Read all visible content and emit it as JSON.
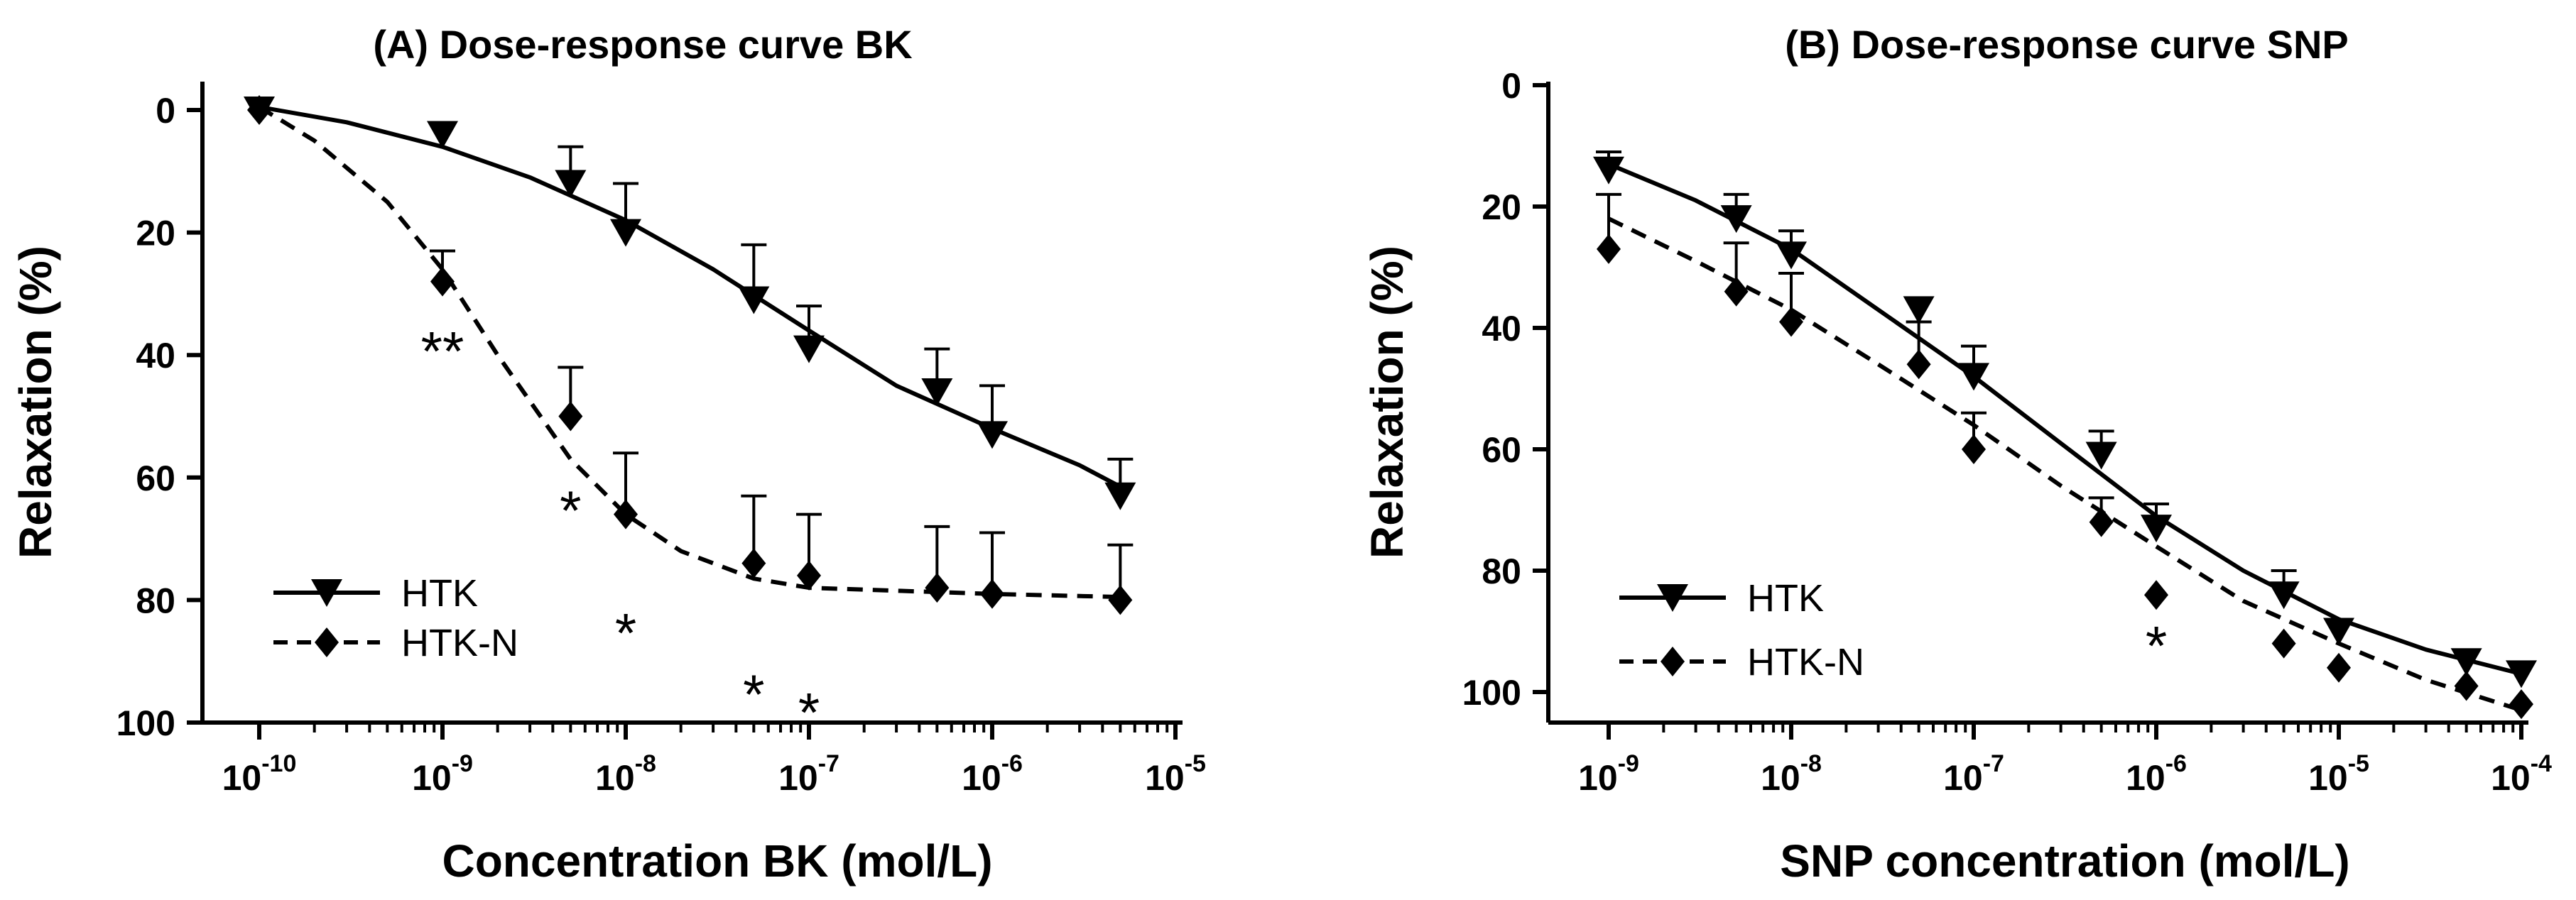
{
  "chart_data": [
    {
      "type": "line",
      "title": "(A) Dose-response curve BK",
      "xlabel": "Concentration BK (mol/L)",
      "ylabel": "Relaxation (%)",
      "x_scale": "log",
      "x_ticks": [
        {
          "value": 1e-10,
          "base": "10",
          "exp": "-10"
        },
        {
          "value": 1e-09,
          "base": "10",
          "exp": "-9"
        },
        {
          "value": 1e-08,
          "base": "10",
          "exp": "-8"
        },
        {
          "value": 1e-07,
          "base": "10",
          "exp": "-7"
        },
        {
          "value": 1e-06,
          "base": "10",
          "exp": "-6"
        },
        {
          "value": 1e-05,
          "base": "10",
          "exp": "-5"
        }
      ],
      "y_ticks": [
        "0",
        "20",
        "40",
        "60",
        "80",
        "100"
      ],
      "y_inverted": true,
      "ylim": [
        0,
        100
      ],
      "legend_position": "bottom-left",
      "series": [
        {
          "name": "HTK",
          "marker": "triangle-down",
          "line_style": "solid",
          "x": [
            1e-10,
            1e-09,
            5e-09,
            1e-08,
            5e-08,
            1e-07,
            5e-07,
            1e-06,
            5e-06
          ],
          "y": [
            0,
            4,
            12,
            20,
            31,
            39,
            46,
            53,
            63
          ],
          "error": [
            0,
            0,
            6,
            8,
            9,
            7,
            7,
            8,
            6
          ],
          "fit": [
            [
              1e-10,
              -0.5
            ],
            [
              3e-10,
              2
            ],
            [
              1e-09,
              6
            ],
            [
              3e-09,
              11
            ],
            [
              1e-08,
              18
            ],
            [
              3e-08,
              26
            ],
            [
              1e-07,
              36
            ],
            [
              3e-07,
              45
            ],
            [
              1e-06,
              52
            ],
            [
              3e-06,
              58
            ],
            [
              5e-06,
              61.5
            ]
          ]
        },
        {
          "name": "HTK-N",
          "marker": "diamond",
          "line_style": "dashed",
          "x": [
            1e-10,
            1e-09,
            5e-09,
            1e-08,
            5e-08,
            1e-07,
            5e-07,
            1e-06,
            5e-06
          ],
          "y": [
            0,
            28,
            50,
            66,
            74,
            76,
            78,
            79,
            80
          ],
          "error": [
            0,
            5,
            8,
            10,
            11,
            10,
            10,
            10,
            9
          ],
          "fit": [
            [
              1e-10,
              -0.5
            ],
            [
              2e-10,
              5
            ],
            [
              5e-10,
              15
            ],
            [
              1e-09,
              26
            ],
            [
              2e-09,
              40
            ],
            [
              5e-09,
              57
            ],
            [
              1e-08,
              66
            ],
            [
              2e-08,
              72
            ],
            [
              5e-08,
              76.5
            ],
            [
              1e-07,
              78
            ],
            [
              1e-06,
              79
            ],
            [
              5e-06,
              79.5
            ]
          ]
        }
      ],
      "annotations": [
        {
          "text": "**",
          "x": 1e-09,
          "y": 39
        },
        {
          "text": "*",
          "x": 5e-09,
          "y": 65
        },
        {
          "text": "*",
          "x": 1e-08,
          "y": 85
        },
        {
          "text": "*",
          "x": 5e-08,
          "y": 95
        },
        {
          "text": "*",
          "x": 1e-07,
          "y": 98
        }
      ]
    },
    {
      "type": "line",
      "title": "(B) Dose-response curve SNP",
      "xlabel": "SNP concentration (mol/L)",
      "ylabel": "Relaxation (%)",
      "x_scale": "log",
      "x_ticks": [
        {
          "value": 1e-09,
          "base": "10",
          "exp": "-9"
        },
        {
          "value": 1e-08,
          "base": "10",
          "exp": "-8"
        },
        {
          "value": 1e-07,
          "base": "10",
          "exp": "-7"
        },
        {
          "value": 1e-06,
          "base": "10",
          "exp": "-6"
        },
        {
          "value": 1e-05,
          "base": "10",
          "exp": "-5"
        },
        {
          "value": 0.0001,
          "base": "10",
          "exp": "-4"
        }
      ],
      "y_ticks": [
        "0",
        "20",
        "40",
        "60",
        "80",
        "100"
      ],
      "y_inverted": true,
      "ylim": [
        0,
        105
      ],
      "legend_position": "bottom-left",
      "series": [
        {
          "name": "HTK",
          "marker": "triangle-down",
          "line_style": "solid",
          "x": [
            1e-09,
            5e-09,
            1e-08,
            5e-08,
            1e-07,
            5e-07,
            1e-06,
            5e-06,
            1e-05,
            5e-05,
            0.0001
          ],
          "y": [
            14,
            22,
            28,
            37,
            48,
            61,
            73,
            84,
            90,
            95,
            97
          ],
          "error": [
            3,
            4,
            4,
            0,
            5,
            4,
            4,
            4,
            0,
            0,
            0
          ],
          "fit": [
            [
              1e-09,
              13
            ],
            [
              3e-09,
              19
            ],
            [
              1e-08,
              27
            ],
            [
              3e-08,
              37
            ],
            [
              1e-07,
              48
            ],
            [
              3e-07,
              59
            ],
            [
              1e-06,
              71
            ],
            [
              3e-06,
              80
            ],
            [
              1e-05,
              88
            ],
            [
              3e-05,
              93
            ],
            [
              0.0001,
              97
            ]
          ]
        },
        {
          "name": "HTK-N",
          "marker": "diamond",
          "line_style": "dashed",
          "x": [
            1e-09,
            5e-09,
            1e-08,
            5e-08,
            1e-07,
            5e-07,
            1e-06,
            5e-06,
            1e-05,
            5e-05,
            0.0001
          ],
          "y": [
            27,
            34,
            39,
            46,
            60,
            72,
            84,
            92,
            96,
            99,
            102
          ],
          "error": [
            9,
            8,
            8,
            7,
            6,
            4,
            0,
            0,
            0,
            0,
            0
          ],
          "fit": [
            [
              1e-09,
              22
            ],
            [
              3e-09,
              29
            ],
            [
              1e-08,
              37
            ],
            [
              3e-08,
              46
            ],
            [
              1e-07,
              56
            ],
            [
              3e-07,
              66
            ],
            [
              1e-06,
              76
            ],
            [
              3e-06,
              85
            ],
            [
              1e-05,
              92
            ],
            [
              3e-05,
              98
            ],
            [
              0.0001,
              103
            ]
          ]
        }
      ],
      "annotations": [
        {
          "text": "*",
          "x": 1e-06,
          "y": 92
        }
      ]
    }
  ]
}
